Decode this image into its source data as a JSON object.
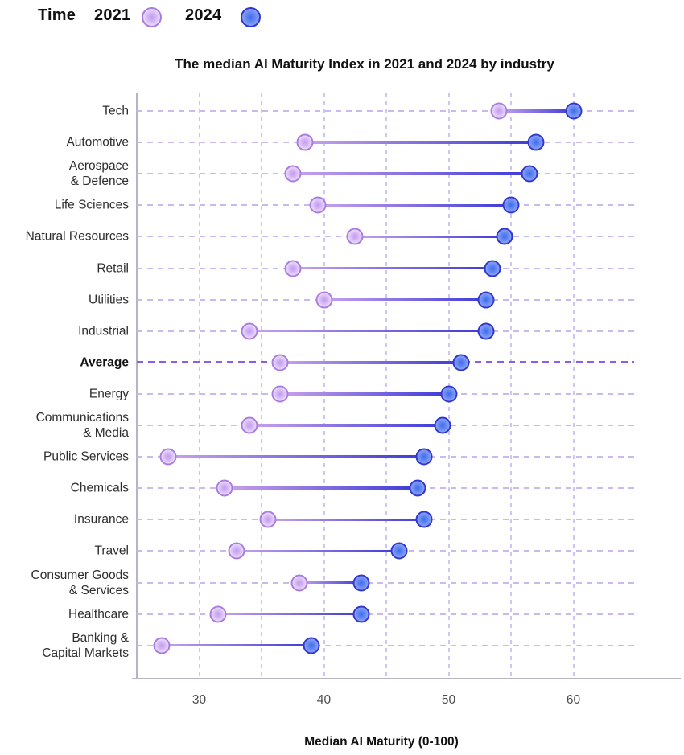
{
  "legend": {
    "title": "Time",
    "items": [
      {
        "label": "2021",
        "series": "2021"
      },
      {
        "label": "2024",
        "series": "2024"
      }
    ]
  },
  "title": "The median AI Maturity Index in 2021 and 2024 by industry",
  "chart_data": {
    "type": "dumbbell",
    "title": "The median AI Maturity Index in 2021 and 2024 by industry",
    "xlabel": "Median AI Maturity (0-100)",
    "xlim": [
      25,
      65
    ],
    "xticks": [
      30,
      40,
      50,
      60
    ],
    "gridline_step": 5,
    "grid": true,
    "legend_position": "top-left",
    "highlight_category": "Average",
    "categories": [
      "Tech",
      "Automotive",
      "Aerospace\n& Defence",
      "Life Sciences",
      "Natural Resources",
      "Retail",
      "Utilities",
      "Industrial",
      "Average",
      "Energy",
      "Communications\n& Media",
      "Public Services",
      "Chemicals",
      "Insurance",
      "Travel",
      "Consumer Goods\n& Services",
      "Healthcare",
      "Banking &\nCapital Markets"
    ],
    "series": [
      {
        "name": "2021",
        "values": [
          54,
          38.5,
          37.5,
          39.5,
          42.5,
          37.5,
          40,
          34,
          36.5,
          36.5,
          34,
          27.5,
          32,
          35.5,
          33,
          38,
          31.5,
          27
        ]
      },
      {
        "name": "2024",
        "values": [
          60,
          57,
          56.5,
          55,
          54.5,
          53.5,
          53,
          53,
          51,
          50,
          49.5,
          48,
          47.5,
          48,
          46,
          43,
          43,
          39
        ]
      }
    ]
  },
  "colors": {
    "dot_2021_ring": "#aa7ce0",
    "dot_2021_center": "#c39bf0",
    "dot_2021_mid": "#d4b6f5",
    "dot_2021_outer": "#ecdffb",
    "dot_2024_ring": "#3236cf",
    "dot_2024_center": "#3f6cee",
    "dot_2024_mid": "#6b8df2",
    "dot_2024_outer": "#93abf5",
    "connector_start": "#c9a2ea",
    "connector_end": "#3c3bd8",
    "gridline": "#cfc5f2",
    "row_line": "#c9b9ee",
    "average_line": "#8b5cf0",
    "axis_line": "#b9b3c6",
    "tick_text": "#4c4c4c",
    "label_text": "#2d2d2d"
  }
}
